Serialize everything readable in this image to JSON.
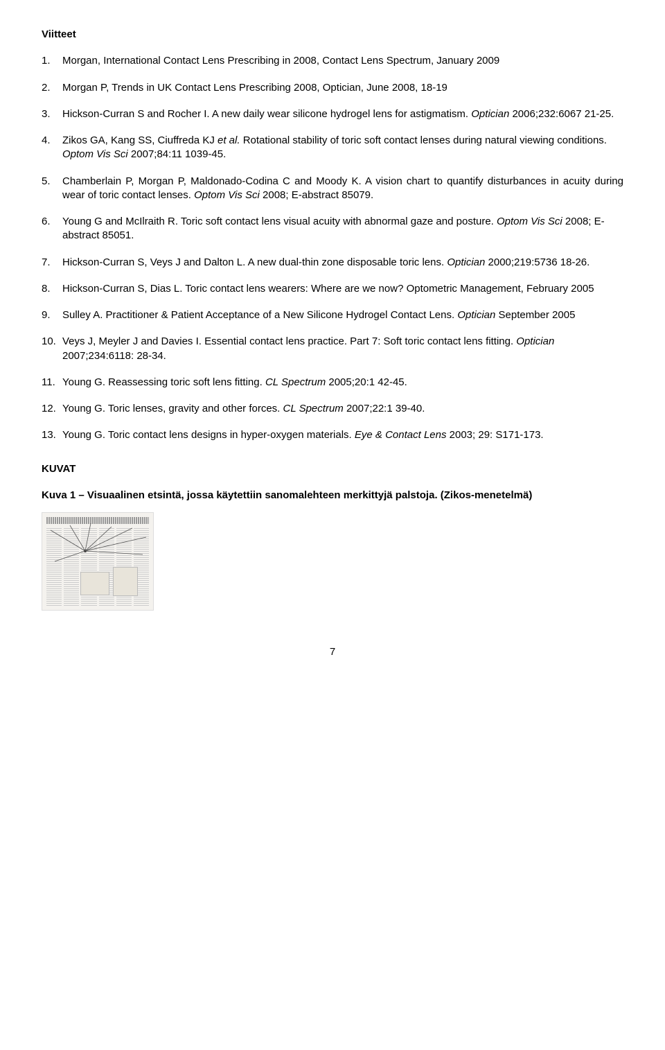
{
  "heading": "Viitteet",
  "references": [
    {
      "n": "1.",
      "plain": "Morgan, International Contact Lens Prescribing in 2008, Contact Lens Spectrum, January 2009",
      "justify": false
    },
    {
      "n": "2.",
      "plain": "Morgan P, Trends in UK Contact Lens Prescribing 2008, Optician, June 2008, 18-19",
      "justify": false
    },
    {
      "n": "3.",
      "pre": "Hickson-Curran S and Rocher I. A new daily wear silicone hydrogel lens for astigmatism. ",
      "ital": "Optician",
      "post": " 2006;232:6067 21-25.",
      "justify": false
    },
    {
      "n": "4.",
      "pre": "Zikos GA, Kang SS, Ciuffreda KJ ",
      "ital": "et al.",
      "post": " Rotational stability of toric soft contact lenses during natural viewing conditions. ",
      "ital2": "Optom Vis Sci",
      "post2": " 2007;84:11 1039-45.",
      "justify": false
    },
    {
      "n": "5.",
      "pre": "Chamberlain P, Morgan P, Maldonado-Codina C and Moody K. A vision chart to quantify disturbances in acuity during wear of toric contact lenses. ",
      "ital": "Optom Vis Sci",
      "post": " 2008; E-abstract 85079.",
      "justify": true
    },
    {
      "n": "6.",
      "pre": "Young G and McIlraith R. Toric soft contact lens visual acuity with abnormal gaze and posture. ",
      "ital": "Optom Vis Sci",
      "post": " 2008; E-abstract 85051.",
      "justify": false
    },
    {
      "n": "7.",
      "pre": "Hickson-Curran S, Veys J and Dalton L. A new dual-thin zone disposable toric lens. ",
      "ital": "Optician",
      "post": " 2000;219:5736 18-26.",
      "justify": false
    },
    {
      "n": "8.",
      "plain": "Hickson-Curran S, Dias L.  Toric contact lens wearers: Where are we now? Optometric Management, February 2005",
      "justify": false
    },
    {
      "n": "9.",
      "pre": "Sulley A.  Practitioner & Patient Acceptance of a New Silicone Hydrogel Contact Lens.  ",
      "ital": "Optician",
      "post": " September 2005",
      "justify": false
    },
    {
      "n": "10.",
      "pre": "Veys J, Meyler J and Davies I. Essential contact lens practice. Part 7: Soft toric contact lens fitting. ",
      "ital": "Optician",
      "post": " 2007;234:6118: 28-34.",
      "justify": false
    },
    {
      "n": "11.",
      "pre": "Young G. Reassessing toric soft lens fitting. ",
      "ital": "CL Spectrum",
      "post": " 2005;20:1 42-45.",
      "justify": false
    },
    {
      "n": "12.",
      "pre": "Young G. Toric lenses, gravity and other forces. ",
      "ital": "CL Spectrum",
      "post": " 2007;22:1 39-40.",
      "justify": false
    },
    {
      "n": "13.",
      "pre": "Young G. Toric contact lens designs in hyper-oxygen materials. ",
      "ital": "Eye & Contact Lens",
      "post": " 2003; 29: S171-173.",
      "justify": false
    }
  ],
  "kuvat_heading": "KUVAT",
  "figure_caption": "Kuva 1 – Visuaalinen etsintä, jossa käytettiin sanomalehteen merkittyjä palstoja. (Zikos-menetelmä)",
  "page_number": "7"
}
